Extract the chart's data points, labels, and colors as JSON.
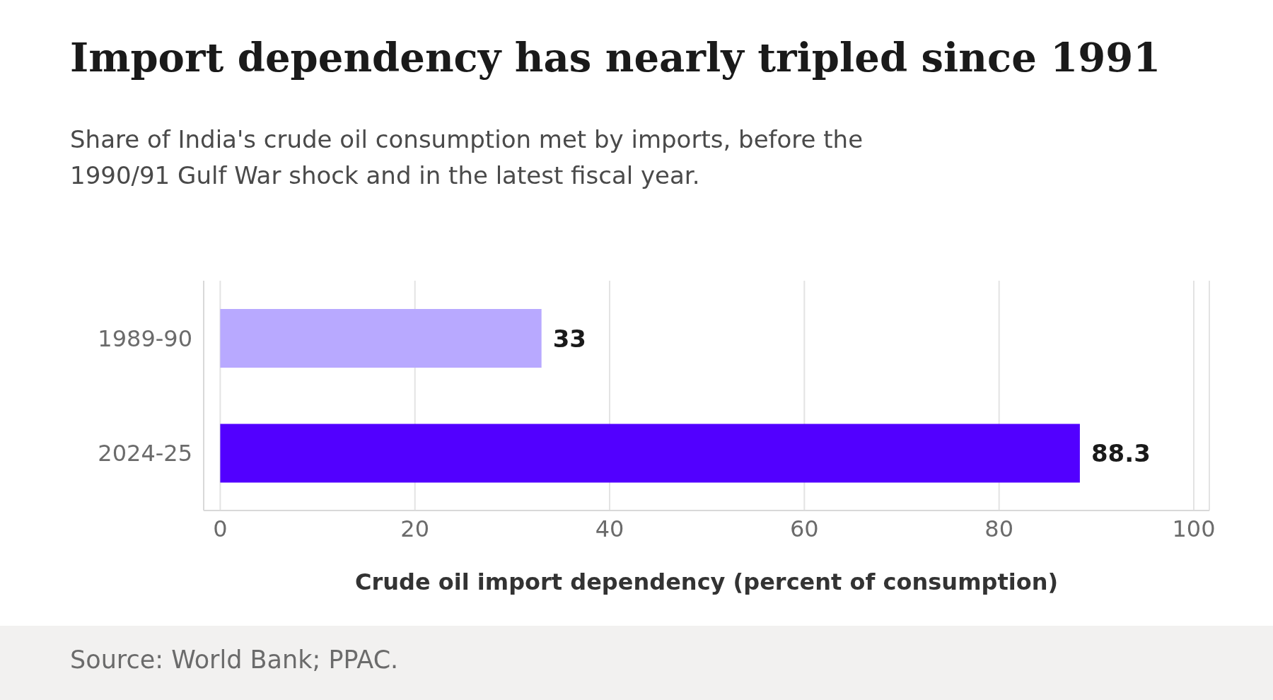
{
  "chart_data": {
    "type": "bar",
    "orientation": "horizontal",
    "title": "Import dependency has nearly tripled since 1991",
    "subtitle": "Share of India's crude oil consumption met by imports, before the 1990/91 Gulf War shock and in the latest fiscal year.",
    "xlabel": "Crude oil import dependency (percent of consumption)",
    "categories": [
      "1989-90",
      "2024-25"
    ],
    "values": [
      33,
      88.3
    ],
    "colors": [
      "#b8a9ff",
      "#5200ff"
    ],
    "xlim": [
      -1.7,
      101.6
    ],
    "xticks": [
      0,
      20,
      40,
      60,
      80,
      100
    ],
    "grid": "x",
    "data_labels": true,
    "legend": false,
    "annotations": [
      "Source: World Bank; PPAC."
    ]
  }
}
